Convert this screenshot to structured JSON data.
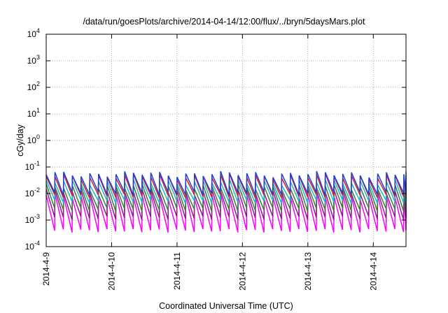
{
  "chart_data": {
    "type": "line",
    "title": "/data/run/goesPlots/archive/2014-04-14/12:00/flux/../bryn/5daysMars.plot",
    "xlabel": "Coordinated Universal Time (UTC)",
    "ylabel": "cGy/day",
    "yscale": "log",
    "ylim": [
      0.0001,
      10000
    ],
    "xlim": [
      "2014-04-09 00:00",
      "2014-04-14 12:00"
    ],
    "grid": true,
    "x_ticks": [
      "2014-4-9",
      "2014-4-10",
      "2014-4-11",
      "2014-4-12",
      "2014-4-13",
      "2014-4-14"
    ],
    "y_ticks": [
      {
        "value": 0.0001,
        "base": "10",
        "exp": "-4"
      },
      {
        "value": 0.001,
        "base": "10",
        "exp": "-3"
      },
      {
        "value": 0.01,
        "base": "10",
        "exp": "-2"
      },
      {
        "value": 0.1,
        "base": "10",
        "exp": "-1"
      },
      {
        "value": 1,
        "base": "10",
        "exp": "0"
      },
      {
        "value": 10,
        "base": "10",
        "exp": "1"
      },
      {
        "value": 100,
        "base": "10",
        "exp": "2"
      },
      {
        "value": 1000,
        "base": "10",
        "exp": "3"
      },
      {
        "value": 10000,
        "base": "10",
        "exp": "4"
      }
    ],
    "sawtooth_period_hours": 3.2,
    "series": [
      {
        "color": "#1f3fd6",
        "peak": 0.055,
        "trough": 0.01
      },
      {
        "color": "#d62020",
        "peak": 0.045,
        "trough": 0.008
      },
      {
        "color": "#1fb5c9",
        "peak": 0.028,
        "trough": 0.005
      },
      {
        "color": "#3a7a3a",
        "peak": 0.018,
        "trough": 0.0025
      },
      {
        "color": "#8b1a8b",
        "peak": 0.012,
        "trough": 0.0012
      },
      {
        "color": "#ff00ff",
        "peak": 0.008,
        "trough": 0.0004
      }
    ]
  }
}
